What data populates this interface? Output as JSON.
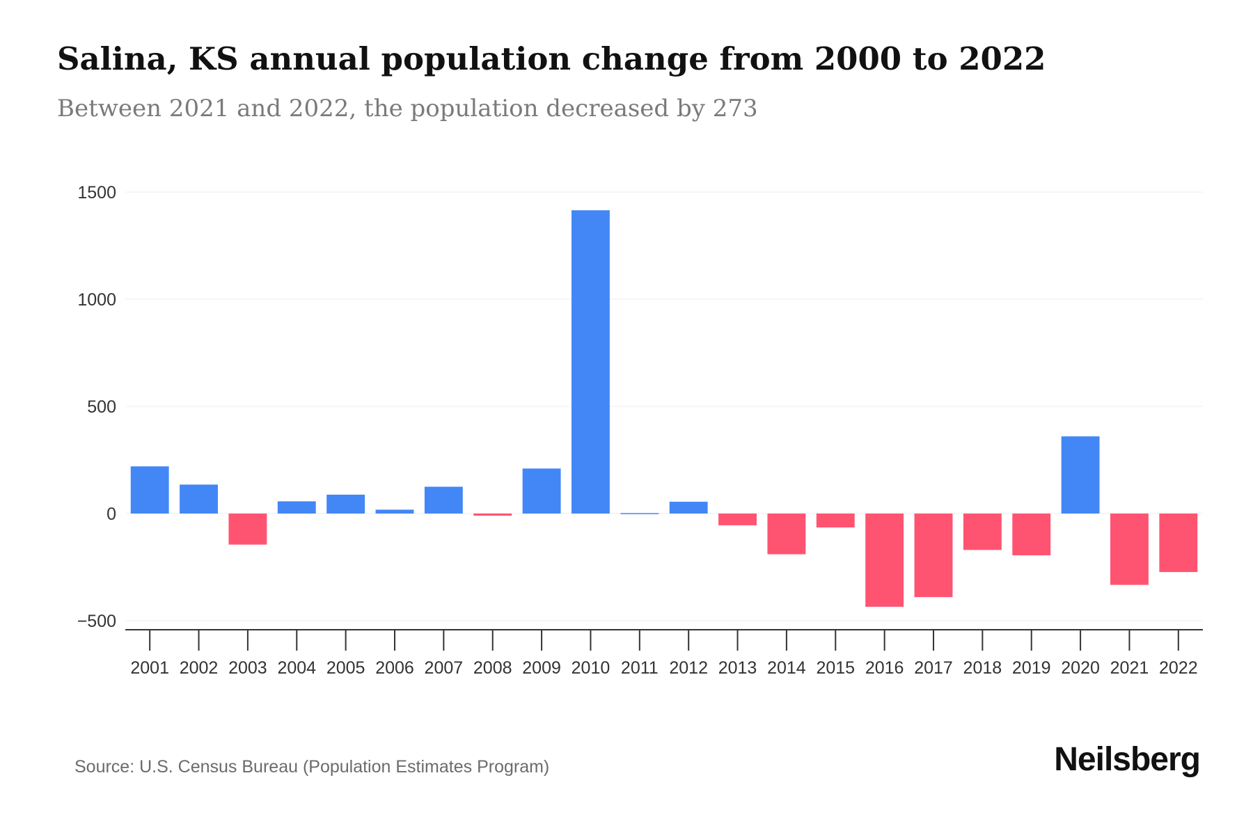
{
  "title": "Salina, KS annual population change from 2000 to 2022",
  "subtitle": "Between 2021 and 2022, the population decreased by 273",
  "source": "Source: U.S. Census Bureau (Population Estimates Program)",
  "brand": "Neilsberg",
  "colors": {
    "positive": "#4287f5",
    "negative": "#ff5471",
    "grid": "#eeeeee",
    "axis": "#333333"
  },
  "chart_data": {
    "type": "bar",
    "title": "Salina, KS annual population change from 2000 to 2022",
    "xlabel": "",
    "ylabel": "",
    "ylim": [
      -500,
      1500
    ],
    "yticks": [
      1500,
      1000,
      500,
      0,
      -500
    ],
    "ytick_labels": [
      "1500",
      "1000",
      "500",
      "0",
      "−500"
    ],
    "grid": true,
    "categories": [
      "2001",
      "2002",
      "2003",
      "2004",
      "2005",
      "2006",
      "2007",
      "2008",
      "2009",
      "2010",
      "2011",
      "2012",
      "2013",
      "2014",
      "2015",
      "2016",
      "2017",
      "2018",
      "2019",
      "2020",
      "2021",
      "2022"
    ],
    "values": [
      220,
      135,
      -145,
      57,
      88,
      18,
      125,
      -10,
      210,
      1415,
      2,
      55,
      -55,
      -190,
      -65,
      -435,
      -390,
      -170,
      -195,
      360,
      -333,
      -273
    ]
  }
}
